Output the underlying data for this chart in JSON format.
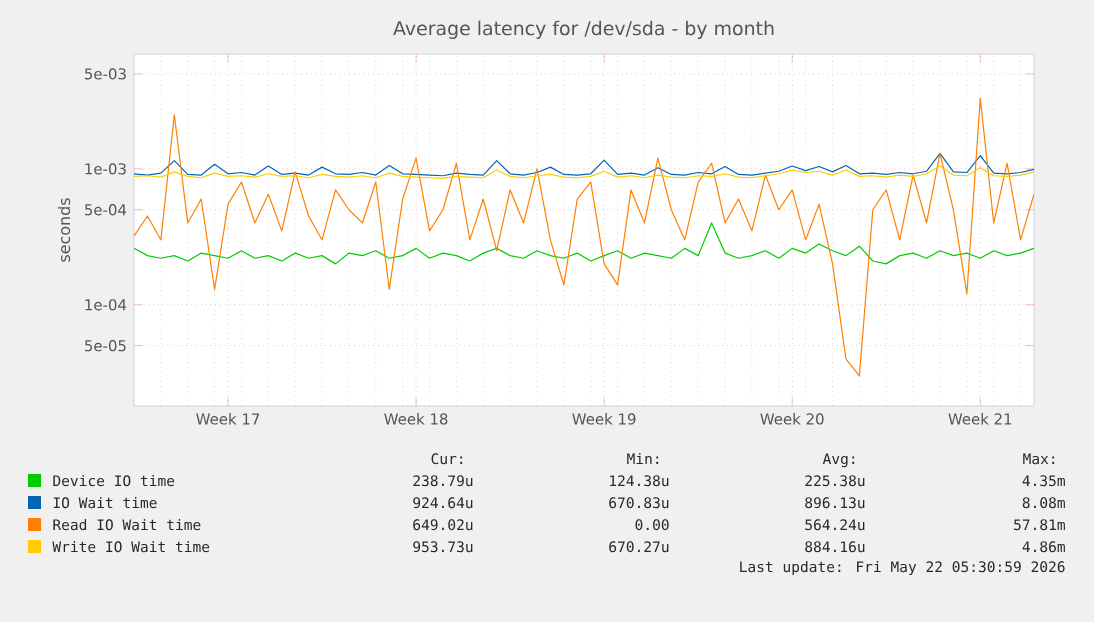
{
  "chart_data": {
    "type": "line",
    "title": "Average latency for /dev/sda - by month",
    "ylabel": "seconds",
    "categories": [
      null,
      null,
      null,
      null,
      null,
      null,
      null,
      "Week 17",
      null,
      null,
      null,
      null,
      null,
      null,
      null,
      null,
      null,
      null,
      null,
      null,
      null,
      "Week 18",
      null,
      null,
      null,
      null,
      null,
      null,
      null,
      null,
      null,
      null,
      null,
      null,
      null,
      "Week 19",
      null,
      null,
      null,
      null,
      null,
      null,
      null,
      null,
      null,
      null,
      null,
      null,
      null,
      "Week 20",
      null,
      null,
      null,
      null,
      null,
      null,
      null,
      null,
      null,
      null,
      null,
      null,
      null,
      "Week 21",
      null,
      null,
      null,
      null
    ],
    "series": [
      {
        "name": "Device IO time",
        "color": "#00cc00",
        "values": [
          0.00026,
          0.00023,
          0.00022,
          0.00023,
          0.00021,
          0.00024,
          0.00023,
          0.00022,
          0.00025,
          0.00022,
          0.00023,
          0.00021,
          0.00024,
          0.00022,
          0.00023,
          0.0002,
          0.00024,
          0.00023,
          0.00025,
          0.00022,
          0.00023,
          0.00026,
          0.00022,
          0.00024,
          0.00023,
          0.00021,
          0.00024,
          0.00026,
          0.00023,
          0.00022,
          0.00025,
          0.00023,
          0.00022,
          0.00024,
          0.00021,
          0.00023,
          0.00025,
          0.00022,
          0.00024,
          0.00023,
          0.00022,
          0.00026,
          0.00023,
          0.0004,
          0.00024,
          0.00022,
          0.00023,
          0.00025,
          0.00022,
          0.00026,
          0.00024,
          0.00028,
          0.00025,
          0.00023,
          0.00027,
          0.00021,
          0.0002,
          0.00023,
          0.00024,
          0.00022,
          0.00025,
          0.00023,
          0.00024,
          0.00022,
          0.00025,
          0.00023,
          0.00024,
          0.00026
        ]
      },
      {
        "name": "IO Wait time",
        "color": "#0066b3",
        "values": [
          0.00092,
          0.0009,
          0.00093,
          0.00115,
          0.00091,
          0.0009,
          0.00108,
          0.00092,
          0.00094,
          0.0009,
          0.00105,
          0.00091,
          0.00093,
          0.0009,
          0.00103,
          0.00092,
          0.00091,
          0.00094,
          0.0009,
          0.00106,
          0.00092,
          0.00091,
          0.0009,
          0.00089,
          0.00093,
          0.00091,
          0.0009,
          0.00115,
          0.00092,
          0.0009,
          0.00094,
          0.00103,
          0.00091,
          0.0009,
          0.00092,
          0.00116,
          0.00091,
          0.00093,
          0.0009,
          0.00102,
          0.00091,
          0.0009,
          0.00094,
          0.00092,
          0.00104,
          0.00091,
          0.0009,
          0.00093,
          0.00096,
          0.00105,
          0.00097,
          0.00104,
          0.00095,
          0.00106,
          0.00092,
          0.00093,
          0.00091,
          0.00094,
          0.00092,
          0.00096,
          0.0013,
          0.00095,
          0.00094,
          0.00125,
          0.00093,
          0.00092,
          0.00094,
          0.00099
        ]
      },
      {
        "name": "Read IO Wait time",
        "color": "#ff8000",
        "values": [
          0.00032,
          0.00045,
          0.0003,
          0.0025,
          0.0004,
          0.0006,
          0.00013,
          0.00055,
          0.0008,
          0.0004,
          0.00065,
          0.00035,
          0.00095,
          0.00045,
          0.0003,
          0.0007,
          0.0005,
          0.0004,
          0.0008,
          0.00013,
          0.0006,
          0.0012,
          0.00035,
          0.0005,
          0.0011,
          0.0003,
          0.0006,
          0.00025,
          0.0007,
          0.0004,
          0.001,
          0.0003,
          0.00014,
          0.0006,
          0.0008,
          0.0002,
          0.00014,
          0.0007,
          0.0004,
          0.0012,
          0.0005,
          0.0003,
          0.0008,
          0.0011,
          0.0004,
          0.0006,
          0.00035,
          0.0009,
          0.0005,
          0.0007,
          0.0003,
          0.00055,
          0.0002,
          4e-05,
          3e-05,
          0.0005,
          0.0007,
          0.0003,
          0.0009,
          0.0004,
          0.0013,
          0.0005,
          0.00012,
          0.0033,
          0.0004,
          0.0011,
          0.0003,
          0.00065
        ]
      },
      {
        "name": "Write IO Wait time",
        "color": "#ffcc00",
        "values": [
          0.00088,
          0.00089,
          0.00087,
          0.00095,
          0.00088,
          0.00086,
          0.00093,
          0.00088,
          0.00089,
          0.00087,
          0.00092,
          0.00088,
          0.00089,
          0.00086,
          0.00091,
          0.00088,
          0.00087,
          0.00089,
          0.00086,
          0.00093,
          0.00088,
          0.00087,
          0.00086,
          0.00085,
          0.00088,
          0.00087,
          0.00086,
          0.00098,
          0.00088,
          0.00086,
          0.00089,
          0.00091,
          0.00087,
          0.00086,
          0.00088,
          0.00096,
          0.00087,
          0.00089,
          0.00086,
          0.0009,
          0.00087,
          0.00086,
          0.00089,
          0.00088,
          0.00092,
          0.00087,
          0.00086,
          0.00089,
          0.00092,
          0.00098,
          0.00094,
          0.00096,
          0.0009,
          0.00098,
          0.00088,
          0.00089,
          0.00087,
          0.0009,
          0.00088,
          0.00092,
          0.00105,
          0.0009,
          0.00089,
          0.00102,
          0.00089,
          0.00088,
          0.0009,
          0.00095
        ]
      }
    ],
    "log": "y",
    "ylim": [
      1.8e-05,
      0.007
    ],
    "yticks": [
      {
        "value": 5e-05,
        "label": "5e-05"
      },
      {
        "value": 0.0001,
        "label": "1e-04"
      },
      {
        "value": 0.0005,
        "label": "5e-04"
      },
      {
        "value": 0.001,
        "label": "1e-03"
      },
      {
        "value": 0.005,
        "label": "5e-03"
      }
    ],
    "grid": true,
    "legend": "bottom",
    "line_style": "solid",
    "annotations": [
      "Cur:",
      "Min:",
      "Avg:",
      "Max:",
      "238.79u",
      "124.38u",
      "225.38u",
      "4.35m",
      "924.64u",
      "670.83u",
      "896.13u",
      "8.08m",
      "649.02u",
      "0.00",
      "564.24u",
      "57.81m",
      "953.73u",
      "670.27u",
      "884.16u",
      "4.86m",
      "Last update: Fri May 22 05:30:59 2026"
    ]
  }
}
